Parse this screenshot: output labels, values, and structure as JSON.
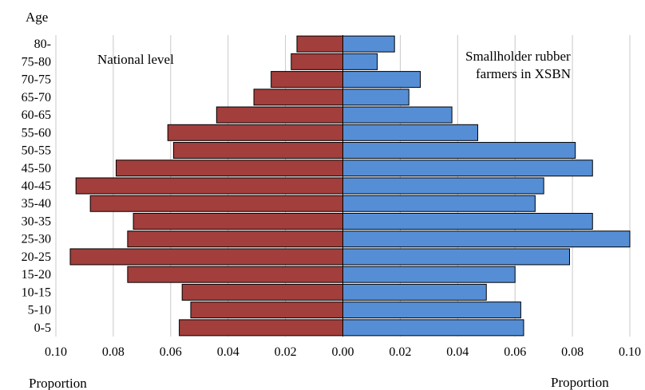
{
  "chart_data": {
    "type": "bar",
    "orientation": "horizontal",
    "layout": "population-pyramid",
    "y_axis_title": "Age",
    "x_axis_title_left": "Proportion",
    "x_axis_title_right": "Proportion",
    "categories": [
      "80-",
      "75-80",
      "70-75",
      "65-70",
      "60-65",
      "55-60",
      "50-55",
      "45-50",
      "40-45",
      "35-40",
      "30-35",
      "25-30",
      "20-25",
      "15-20",
      "10-15",
      "5-10",
      "0-5"
    ],
    "x_ticks": [
      "0.10",
      "0.08",
      "0.06",
      "0.04",
      "0.02",
      "0.00",
      "0.02",
      "0.04",
      "0.06",
      "0.08",
      "0.10"
    ],
    "xlim": [
      -0.1,
      0.1
    ],
    "grid": "vertical",
    "series": [
      {
        "name": "National level",
        "side": "left",
        "color": "#A23E3C",
        "label_color": "#A23E3C",
        "values": [
          0.016,
          0.018,
          0.025,
          0.031,
          0.044,
          0.061,
          0.059,
          0.079,
          0.093,
          0.088,
          0.073,
          0.075,
          0.095,
          0.075,
          0.056,
          0.053,
          0.057
        ]
      },
      {
        "name_lines": [
          "Smallholder rubber",
          "farmers in XSBN"
        ],
        "side": "right",
        "color": "#558ED5",
        "label_color": "#1F3864",
        "values": [
          0.018,
          0.012,
          0.027,
          0.023,
          0.038,
          0.047,
          0.081,
          0.087,
          0.07,
          0.067,
          0.087,
          0.1,
          0.079,
          0.06,
          0.05,
          0.062,
          0.063
        ]
      }
    ]
  }
}
